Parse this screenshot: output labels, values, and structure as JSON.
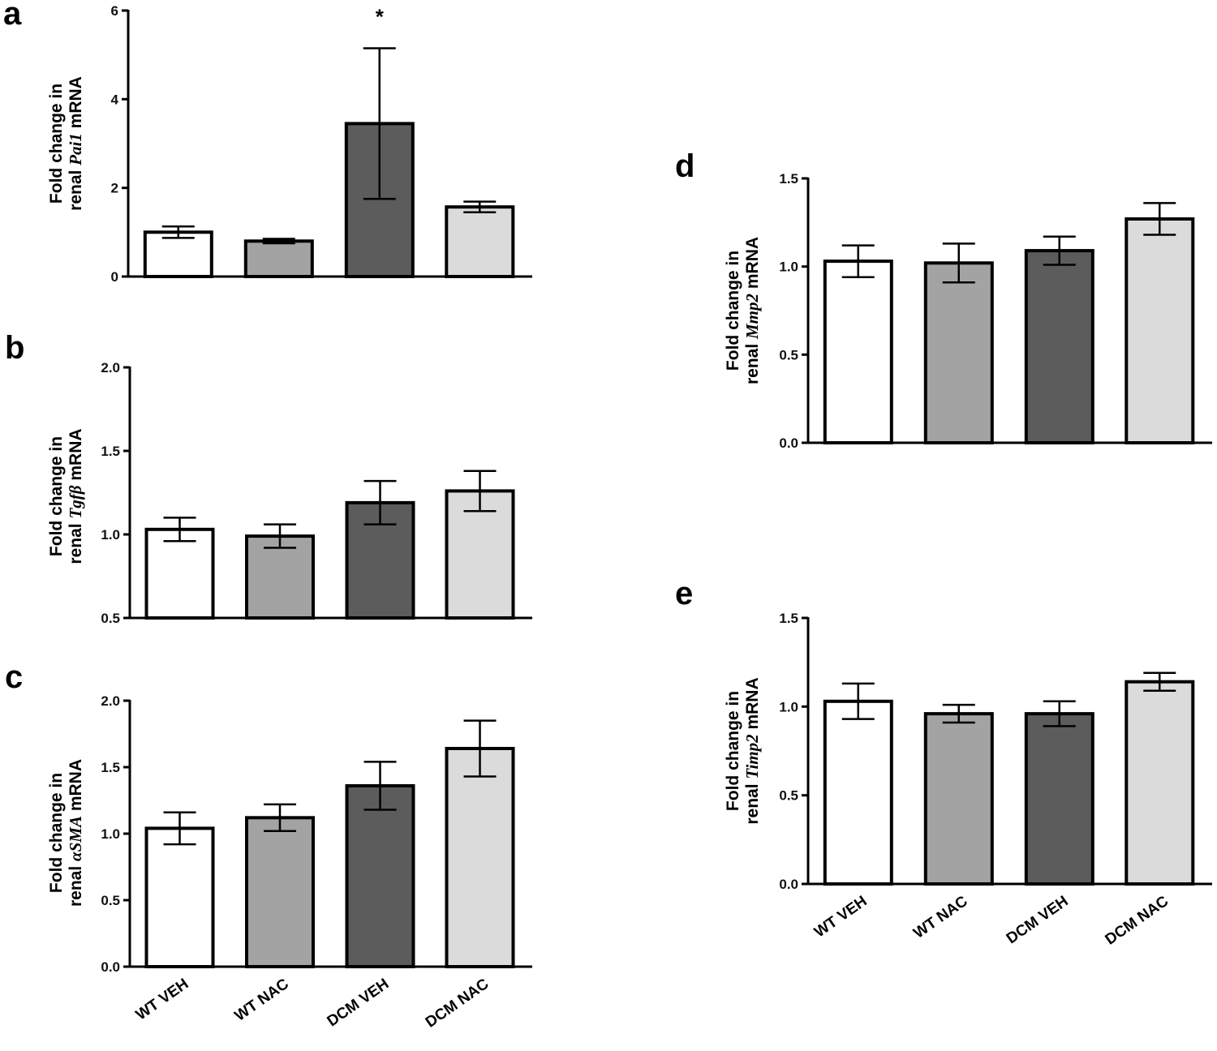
{
  "colors": {
    "axis": "#000000",
    "bar_stroke": "#000000",
    "series_fills": [
      "#ffffff",
      "#a3a3a3",
      "#5c5c5c",
      "#dbdbdb"
    ]
  },
  "chart_data": [
    {
      "id": "a",
      "type": "bar",
      "panel_label": "a",
      "ylabel_line1": "Fold change in",
      "ylabel_prefix": "renal ",
      "ylabel_gene": "Pai1",
      "ylabel_suffix": " mRNA",
      "categories": [
        "WT VEH",
        "WT NAC",
        "DCM VEH",
        "DCM NAC"
      ],
      "show_xticklabels": false,
      "values": [
        1.0,
        0.8,
        3.45,
        1.57
      ],
      "errors": [
        0.13,
        0.05,
        1.7,
        0.12
      ],
      "ylim": [
        0,
        6
      ],
      "yticks": [
        0,
        2,
        4,
        6
      ],
      "ytick_labels": [
        "0",
        "2",
        "4",
        "6"
      ],
      "annotations": [
        {
          "category_index": 2,
          "text": "*"
        }
      ]
    },
    {
      "id": "b",
      "type": "bar",
      "panel_label": "b",
      "ylabel_line1": "Fold change in",
      "ylabel_prefix": "renal ",
      "ylabel_gene": "Tgfβ",
      "ylabel_suffix": " mRNA",
      "categories": [
        "WT VEH",
        "WT NAC",
        "DCM VEH",
        "DCM NAC"
      ],
      "show_xticklabels": false,
      "values": [
        1.03,
        0.99,
        1.19,
        1.26
      ],
      "errors": [
        0.07,
        0.07,
        0.13,
        0.12
      ],
      "ylim": [
        0.5,
        2.0
      ],
      "yticks": [
        0.5,
        1.0,
        1.5,
        2.0
      ],
      "ytick_labels": [
        "0.5",
        "1.0",
        "1.5",
        "2.0"
      ],
      "annotations": []
    },
    {
      "id": "c",
      "type": "bar",
      "panel_label": "c",
      "ylabel_line1": "Fold change in",
      "ylabel_prefix": "renal ",
      "ylabel_gene": "αSMA",
      "ylabel_suffix": " mRNA",
      "categories": [
        "WT VEH",
        "WT NAC",
        "DCM VEH",
        "DCM NAC"
      ],
      "show_xticklabels": true,
      "values": [
        1.04,
        1.12,
        1.36,
        1.64
      ],
      "errors": [
        0.12,
        0.1,
        0.18,
        0.21
      ],
      "ylim": [
        0,
        2.0
      ],
      "yticks": [
        0,
        0.5,
        1.0,
        1.5,
        2.0
      ],
      "ytick_labels": [
        "0.0",
        "0.5",
        "1.0",
        "1.5",
        "2.0"
      ],
      "annotations": []
    },
    {
      "id": "d",
      "type": "bar",
      "panel_label": "d",
      "ylabel_line1": "Fold change in",
      "ylabel_prefix": "renal ",
      "ylabel_gene": "Mmp2",
      "ylabel_suffix": " mRNA",
      "categories": [
        "WT VEH",
        "WT NAC",
        "DCM VEH",
        "DCM NAC"
      ],
      "show_xticklabels": false,
      "values": [
        1.03,
        1.02,
        1.09,
        1.27
      ],
      "errors": [
        0.09,
        0.11,
        0.08,
        0.09
      ],
      "ylim": [
        0,
        1.5
      ],
      "yticks": [
        0,
        0.5,
        1.0,
        1.5
      ],
      "ytick_labels": [
        "0.0",
        "0.5",
        "1.0",
        "1.5"
      ],
      "annotations": []
    },
    {
      "id": "e",
      "type": "bar",
      "panel_label": "e",
      "ylabel_line1": "Fold change in",
      "ylabel_prefix": "renal ",
      "ylabel_gene": "Timp2",
      "ylabel_suffix": " mRNA",
      "categories": [
        "WT VEH",
        "WT NAC",
        "DCM VEH",
        "DCM NAC"
      ],
      "show_xticklabels": true,
      "values": [
        1.03,
        0.96,
        0.96,
        1.14
      ],
      "errors": [
        0.1,
        0.05,
        0.07,
        0.05
      ],
      "ylim": [
        0,
        1.5
      ],
      "yticks": [
        0,
        0.5,
        1.0,
        1.5
      ],
      "ytick_labels": [
        "0.0",
        "0.5",
        "1.0",
        "1.5"
      ],
      "annotations": []
    }
  ]
}
